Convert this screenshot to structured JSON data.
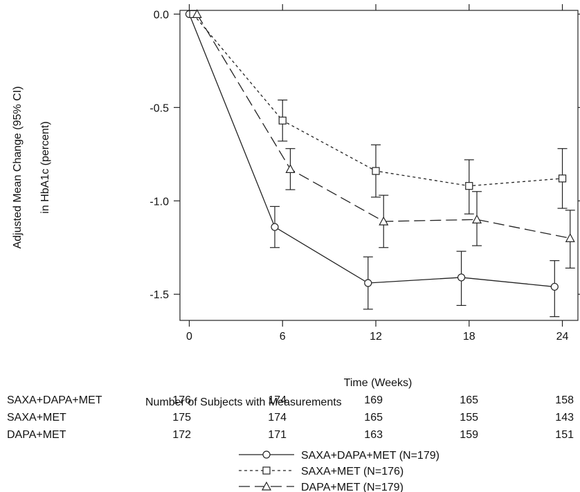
{
  "chart_data": {
    "type": "line",
    "title": "",
    "xlabel": "Time (Weeks)",
    "ylabel_line1": "Adjusted Mean Change (95% CI)",
    "ylabel_line2": "in HbA1c (percent)",
    "x_ticks": [
      0,
      6,
      12,
      18,
      24
    ],
    "y_ticks": [
      "0.0",
      "-0.5",
      "-1.0",
      "-1.5"
    ],
    "xlim": [
      -0.6,
      25.0
    ],
    "ylim": [
      -1.64,
      0.02
    ],
    "grid": false,
    "legend_position": "bottom-right",
    "series": [
      {
        "name": "SAXA+DAPA+MET (N=179)",
        "marker": "circle",
        "dash": "solid",
        "x": [
          0,
          5.5,
          11.5,
          17.5,
          23.5
        ],
        "y": [
          0.0,
          -1.14,
          -1.44,
          -1.41,
          -1.46
        ],
        "ci_low": [
          0.0,
          -1.25,
          -1.58,
          -1.56,
          -1.62
        ],
        "ci_high": [
          0.0,
          -1.03,
          -1.3,
          -1.27,
          -1.32
        ]
      },
      {
        "name": "SAXA+MET (N=176)",
        "marker": "square",
        "dash": "short",
        "x": [
          0.25,
          6.0,
          12.0,
          18.0,
          24.0
        ],
        "y": [
          0.0,
          -0.57,
          -0.84,
          -0.92,
          -0.88
        ],
        "ci_low": [
          0.0,
          -0.68,
          -0.98,
          -1.07,
          -1.04
        ],
        "ci_high": [
          0.0,
          -0.46,
          -0.7,
          -0.78,
          -0.72
        ]
      },
      {
        "name": "DAPA+MET (N=179)",
        "marker": "triangle",
        "dash": "long",
        "x": [
          0.5,
          6.5,
          12.5,
          18.5,
          24.5
        ],
        "y": [
          0.0,
          -0.83,
          -1.11,
          -1.1,
          -1.2
        ],
        "ci_low": [
          0.0,
          -0.94,
          -1.25,
          -1.24,
          -1.36
        ],
        "ci_high": [
          0.0,
          -0.72,
          -0.97,
          -0.95,
          -1.05
        ]
      }
    ]
  },
  "subjects_table": {
    "title": "Number of Subjects with Measurements",
    "rows": [
      {
        "label": "SAXA+DAPA+MET",
        "values": [
          "176",
          "174",
          "169",
          "165",
          "158"
        ]
      },
      {
        "label": "SAXA+MET",
        "values": [
          "175",
          "174",
          "165",
          "155",
          "143"
        ]
      },
      {
        "label": "DAPA+MET",
        "values": [
          "172",
          "171",
          "163",
          "159",
          "151"
        ]
      }
    ]
  },
  "colors": {
    "line": "#222222",
    "background": "#ffffff"
  }
}
